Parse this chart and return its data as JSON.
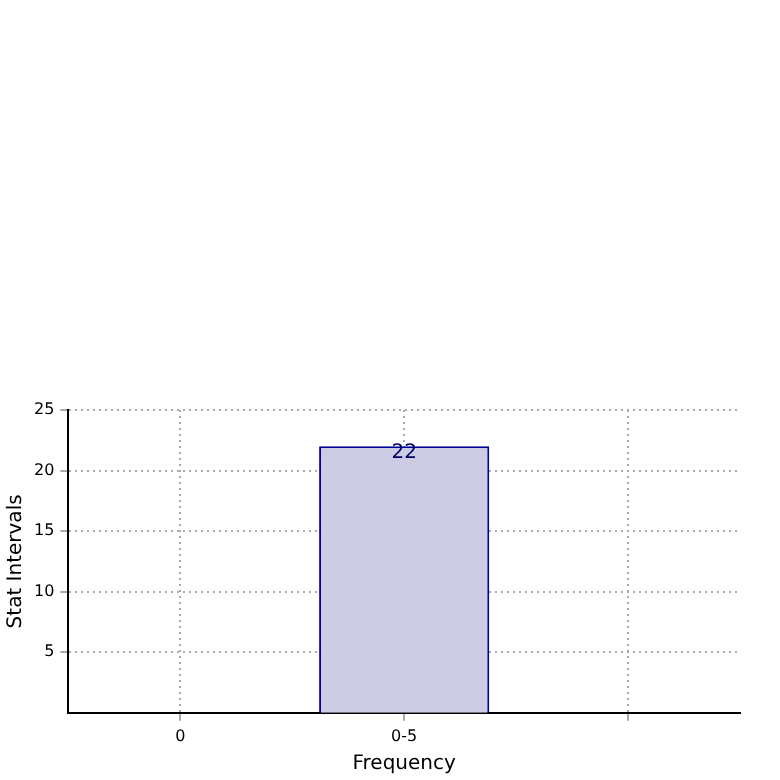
{
  "chart_data": {
    "type": "bar",
    "xlabel": "Frequency",
    "ylabel": "Stat Intervals",
    "categories": [
      "0",
      "0-5",
      null
    ],
    "values": [
      null,
      22,
      null
    ],
    "color": "#cccce4",
    "ylim": [
      0,
      25
    ],
    "yticks": [
      5,
      10,
      15,
      20,
      25
    ],
    "grid": true,
    "data_labels": true
  }
}
